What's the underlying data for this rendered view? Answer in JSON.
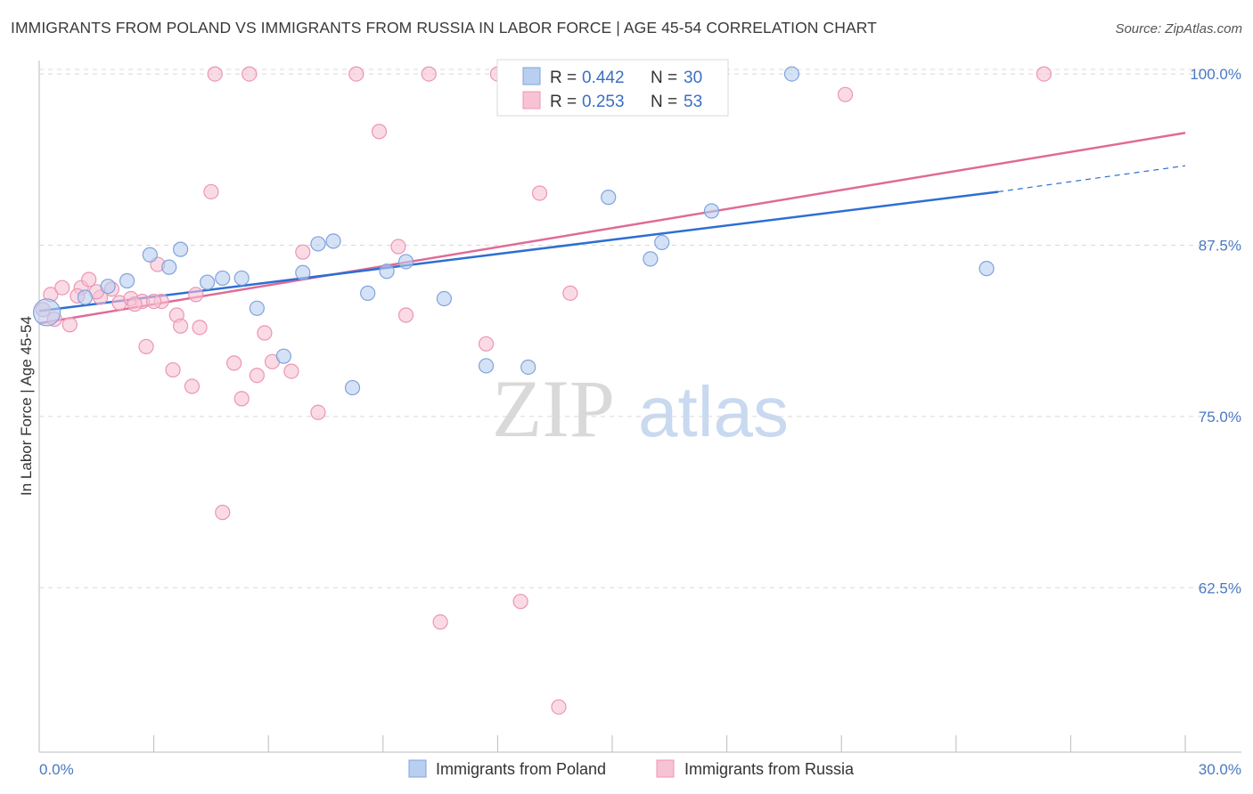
{
  "title": "IMMIGRANTS FROM POLAND VS IMMIGRANTS FROM RUSSIA IN LABOR FORCE | AGE 45-54 CORRELATION CHART",
  "source": "Source: ZipAtlas.com",
  "watermark": {
    "zip": "ZIP",
    "atlas": "atlas"
  },
  "colors": {
    "poland_fill": "#b9cff0",
    "poland_stroke": "#7fa3dd",
    "poland_line": "#2e6fd1",
    "russia_fill": "#f7c3d4",
    "russia_stroke": "#ec95b2",
    "russia_line": "#e06a97",
    "grid": "#d8d8d8",
    "tick_text": "#4a78c2"
  },
  "chart_data": {
    "type": "scatter",
    "title": "IMMIGRANTS FROM POLAND VS IMMIGRANTS FROM RUSSIA IN LABOR FORCE | AGE 45-54 CORRELATION CHART",
    "xlabel": "",
    "ylabel": "In Labor Force | Age 45-54",
    "xlim": [
      0,
      30
    ],
    "ylim": [
      50.5,
      101.5
    ],
    "x_tick_labels": [
      {
        "value": 0,
        "label": "0.0%"
      },
      {
        "value": 30,
        "label": "30.0%"
      }
    ],
    "y_tick_labels": [
      {
        "value": 62.5,
        "label": "62.5%"
      },
      {
        "value": 75.0,
        "label": "75.0%"
      },
      {
        "value": 87.5,
        "label": "87.5%"
      },
      {
        "value": 100.0,
        "label": "100.0%"
      }
    ],
    "grid": "horizontal dashed",
    "legend_placement": "top-center",
    "stats": [
      {
        "r_label": "R = ",
        "r": "0.442",
        "n_label": "N = ",
        "n": "30"
      },
      {
        "r_label": "R = ",
        "r": "0.253",
        "n_label": "N = ",
        "n": "53"
      }
    ],
    "series": [
      {
        "name": "Immigrants from Poland",
        "points": [
          [
            0.2,
            82.6
          ],
          [
            1.2,
            83.7
          ],
          [
            1.8,
            84.5
          ],
          [
            2.3,
            84.9
          ],
          [
            2.9,
            86.8
          ],
          [
            3.4,
            85.9
          ],
          [
            3.7,
            87.2
          ],
          [
            4.4,
            84.8
          ],
          [
            4.8,
            85.1
          ],
          [
            5.3,
            85.1
          ],
          [
            5.7,
            82.9
          ],
          [
            6.4,
            79.4
          ],
          [
            6.9,
            85.5
          ],
          [
            7.3,
            87.6
          ],
          [
            7.7,
            87.8
          ],
          [
            8.2,
            77.1
          ],
          [
            8.6,
            84.0
          ],
          [
            9.1,
            85.6
          ],
          [
            9.6,
            86.3
          ],
          [
            10.6,
            83.6
          ],
          [
            11.7,
            78.7
          ],
          [
            12.8,
            78.6
          ],
          [
            14.5,
            100.0
          ],
          [
            14.9,
            91.0
          ],
          [
            16.0,
            86.5
          ],
          [
            16.3,
            87.7
          ],
          [
            17.6,
            90.0
          ],
          [
            19.7,
            100.0
          ],
          [
            24.8,
            85.8
          ],
          [
            17.5,
            100.0
          ]
        ],
        "trend": {
          "x": [
            0,
            25.1
          ],
          "y": [
            82.7,
            91.4
          ],
          "dashed_to": [
            30,
            93.3
          ]
        }
      },
      {
        "name": "Immigrants from Russia",
        "points": [
          [
            0.1,
            82.8
          ],
          [
            0.3,
            83.9
          ],
          [
            0.6,
            84.4
          ],
          [
            0.8,
            81.7
          ],
          [
            1.1,
            84.4
          ],
          [
            1.3,
            85.0
          ],
          [
            1.6,
            83.7
          ],
          [
            1.9,
            84.3
          ],
          [
            2.1,
            83.3
          ],
          [
            2.4,
            83.6
          ],
          [
            2.7,
            83.4
          ],
          [
            2.8,
            80.1
          ],
          [
            3.1,
            86.1
          ],
          [
            3.2,
            83.4
          ],
          [
            3.5,
            78.4
          ],
          [
            3.6,
            82.4
          ],
          [
            3.7,
            81.6
          ],
          [
            4.0,
            77.2
          ],
          [
            4.1,
            83.9
          ],
          [
            4.2,
            81.5
          ],
          [
            4.5,
            91.4
          ],
          [
            4.6,
            100.0
          ],
          [
            4.8,
            68.0
          ],
          [
            5.1,
            78.9
          ],
          [
            5.3,
            76.3
          ],
          [
            5.5,
            100.0
          ],
          [
            5.7,
            78.0
          ],
          [
            5.9,
            81.1
          ],
          [
            6.6,
            78.3
          ],
          [
            6.9,
            87.0
          ],
          [
            7.3,
            75.3
          ],
          [
            8.3,
            100.0
          ],
          [
            8.9,
            95.8
          ],
          [
            9.4,
            87.4
          ],
          [
            9.6,
            82.4
          ],
          [
            10.2,
            100.0
          ],
          [
            10.5,
            60.0
          ],
          [
            11.7,
            80.3
          ],
          [
            12.0,
            100.0
          ],
          [
            12.5,
            100.0
          ],
          [
            12.6,
            61.5
          ],
          [
            13.1,
            91.3
          ],
          [
            13.6,
            53.8
          ],
          [
            13.9,
            84.0
          ],
          [
            14.4,
            100.0
          ],
          [
            21.1,
            98.5
          ],
          [
            26.3,
            100.0
          ],
          [
            1.0,
            83.8
          ],
          [
            2.5,
            83.2
          ],
          [
            0.4,
            82.1
          ],
          [
            3.0,
            83.4
          ],
          [
            6.1,
            79.0
          ],
          [
            1.5,
            84.1
          ]
        ],
        "trend": {
          "x": [
            0,
            30
          ],
          "y": [
            81.8,
            95.7
          ]
        }
      }
    ]
  }
}
